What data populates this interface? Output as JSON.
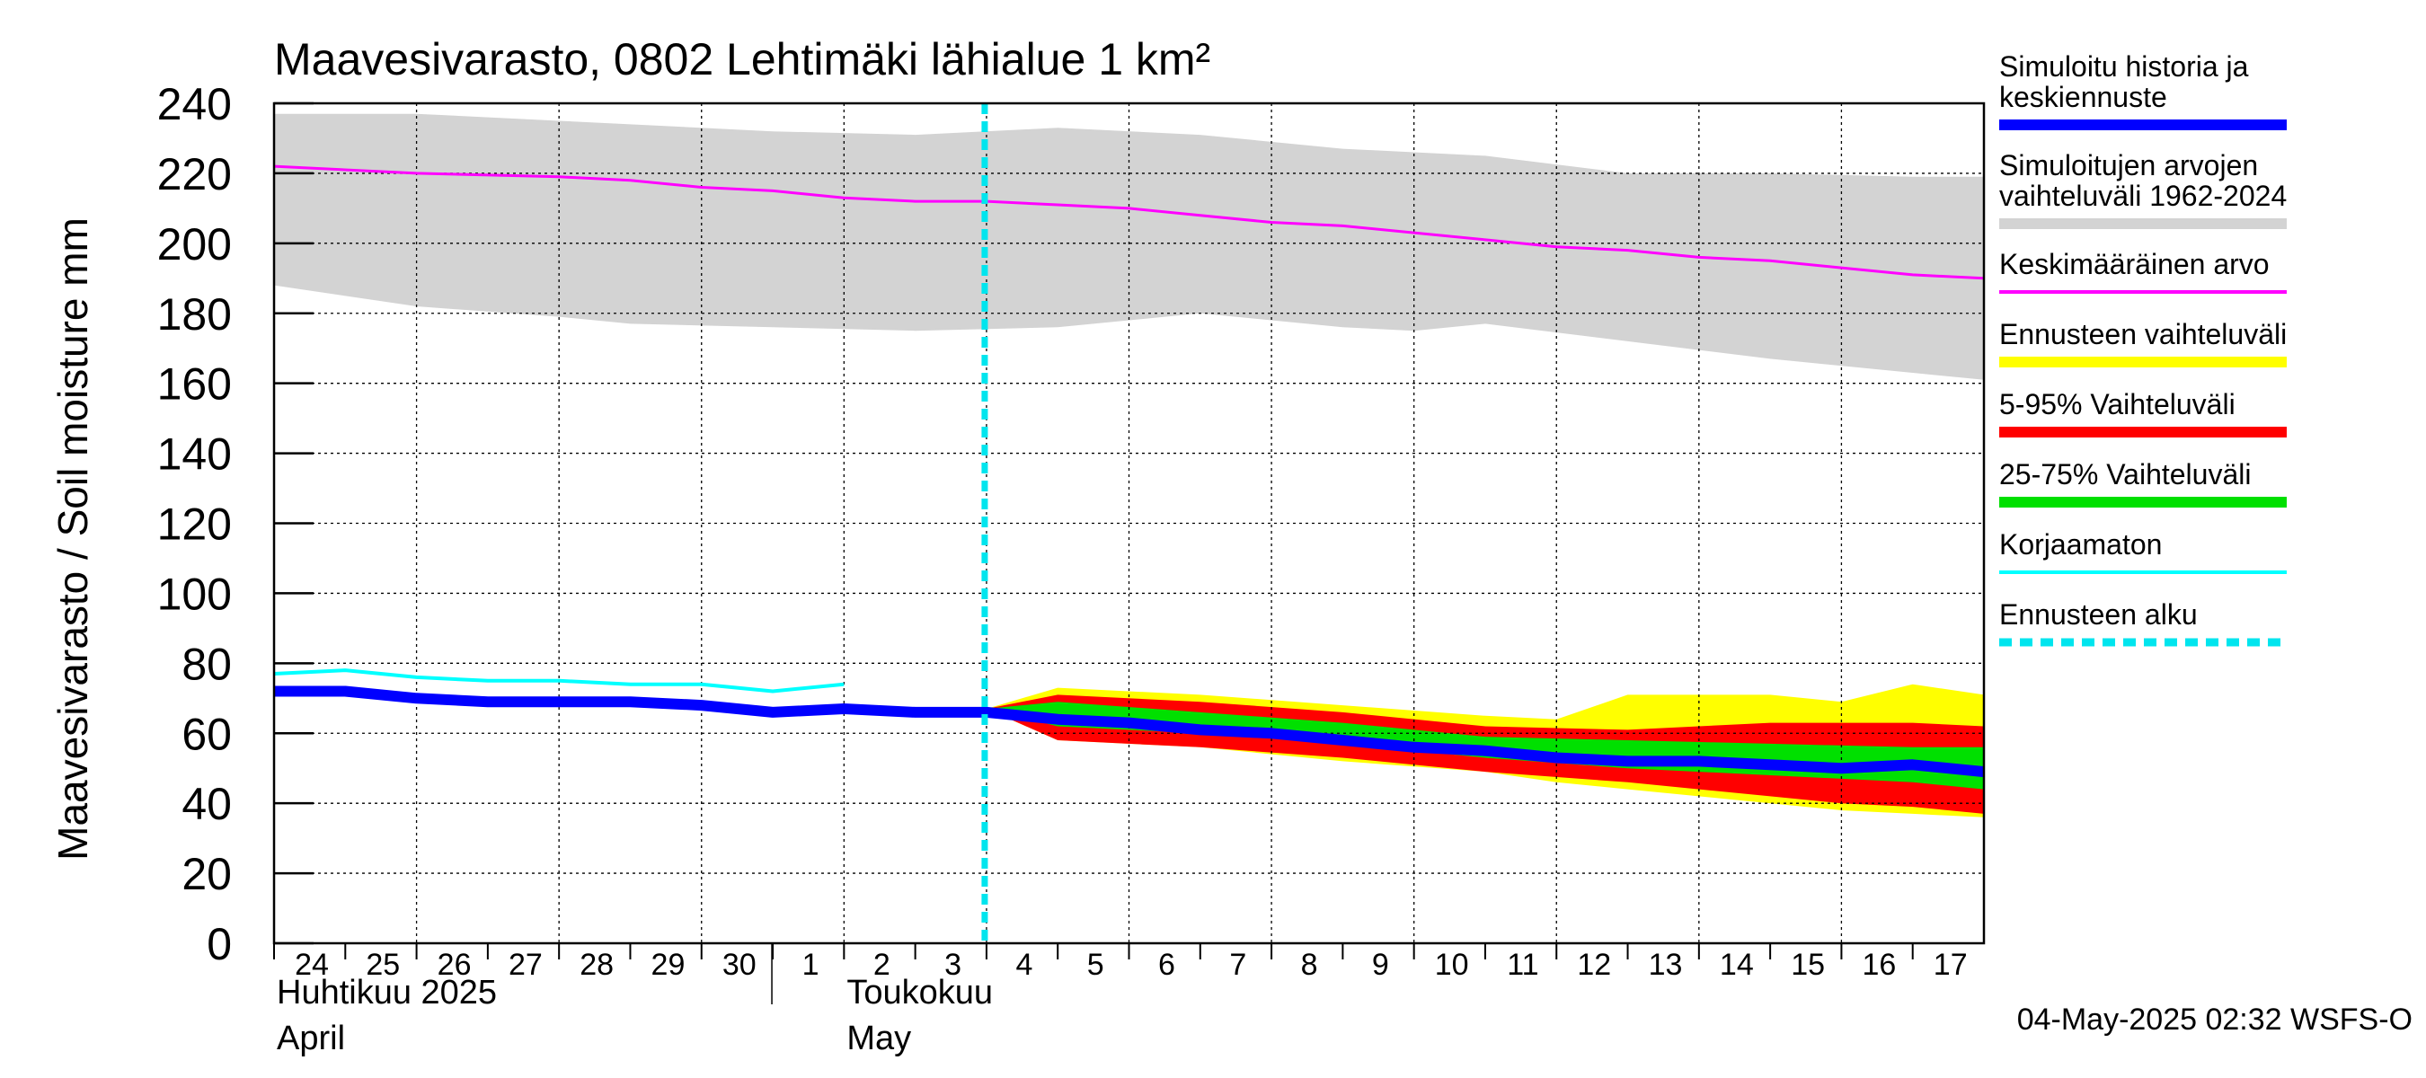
{
  "chart_data": {
    "type": "area",
    "title": "Maavesivarasto, 0802 Lehtimäki lähialue 1 km²",
    "ylabel": "Maavesivarasto / Soil moisture   mm",
    "ylim": [
      0,
      240
    ],
    "yticks": [
      0,
      20,
      40,
      60,
      80,
      100,
      120,
      140,
      160,
      180,
      200,
      220,
      240
    ],
    "x_start": "2025-04-24",
    "x_end": "2025-05-18",
    "day_ticks": [
      {
        "date": "2025-04-24",
        "label": "24"
      },
      {
        "date": "2025-04-25",
        "label": "25"
      },
      {
        "date": "2025-04-26",
        "label": "26"
      },
      {
        "date": "2025-04-27",
        "label": "27"
      },
      {
        "date": "2025-04-28",
        "label": "28"
      },
      {
        "date": "2025-04-29",
        "label": "29"
      },
      {
        "date": "2025-04-30",
        "label": "30"
      },
      {
        "date": "2025-05-01",
        "label": "1"
      },
      {
        "date": "2025-05-02",
        "label": "2"
      },
      {
        "date": "2025-05-03",
        "label": "3"
      },
      {
        "date": "2025-05-04",
        "label": "4"
      },
      {
        "date": "2025-05-05",
        "label": "5"
      },
      {
        "date": "2025-05-06",
        "label": "6"
      },
      {
        "date": "2025-05-07",
        "label": "7"
      },
      {
        "date": "2025-05-08",
        "label": "8"
      },
      {
        "date": "2025-05-09",
        "label": "9"
      },
      {
        "date": "2025-05-10",
        "label": "10"
      },
      {
        "date": "2025-05-11",
        "label": "11"
      },
      {
        "date": "2025-05-12",
        "label": "12"
      },
      {
        "date": "2025-05-13",
        "label": "13"
      },
      {
        "date": "2025-05-14",
        "label": "14"
      },
      {
        "date": "2025-05-15",
        "label": "15"
      },
      {
        "date": "2025-05-16",
        "label": "16"
      },
      {
        "date": "2025-05-17",
        "label": "17"
      }
    ],
    "month_labels": [
      {
        "date": "2025-04-24",
        "line1": "Huhtikuu  2025",
        "line2": "April"
      },
      {
        "date": "2025-05-02",
        "line1": "Toukokuu",
        "line2": "May"
      }
    ],
    "month_boundary": "2025-05-01",
    "forecast_start": "2025-05-04",
    "timestamp": "04-May-2025 02:32 WSFS-O",
    "legend_position": "right",
    "legend": [
      {
        "label": "Simuloitu historia ja\nkeskiennuste",
        "color": "#0000ff",
        "style": "thick"
      },
      {
        "label": "Simuloitujen arvojen\nvaihteluväli 1962-2024",
        "color": "#d3d3d3",
        "style": "thick"
      },
      {
        "label": "Keskimääräinen arvo",
        "color": "#ff00ff",
        "style": "thin"
      },
      {
        "label": "Ennusteen vaihteluväli",
        "color": "#ffff00",
        "style": "thick"
      },
      {
        "label": "5-95% Vaihteluväli",
        "color": "#ff0000",
        "style": "thick"
      },
      {
        "label": "25-75% Vaihteluväli",
        "color": "#00e000",
        "style": "thick"
      },
      {
        "label": "Korjaamaton",
        "color": "#00ffff",
        "style": "thin"
      },
      {
        "label": "Ennusteen alku",
        "color": "#00e5ee",
        "style": "dashed"
      }
    ],
    "series": [
      {
        "name": "Simuloitujen arvojen vaihteluväli 1962-2024",
        "kind": "band",
        "color": "#d3d3d3",
        "x": [
          "2025-04-24",
          "2025-04-26",
          "2025-04-28",
          "2025-04-29",
          "2025-05-01",
          "2025-05-03",
          "2025-05-05",
          "2025-05-07",
          "2025-05-09",
          "2025-05-10",
          "2025-05-11",
          "2025-05-13",
          "2025-05-15",
          "2025-05-17",
          "2025-05-18"
        ],
        "upper": [
          237,
          237,
          235,
          234,
          232,
          231,
          233,
          231,
          227,
          226,
          225,
          220,
          220,
          219,
          219
        ],
        "lower": [
          188,
          182,
          179,
          177,
          176,
          175,
          176,
          180,
          176,
          175,
          177,
          172,
          167,
          163,
          161
        ]
      },
      {
        "name": "Ennusteen vaihteluväli",
        "kind": "band",
        "color": "#ffff00",
        "x": [
          "2025-05-04",
          "2025-05-05",
          "2025-05-07",
          "2025-05-09",
          "2025-05-11",
          "2025-05-12",
          "2025-05-13",
          "2025-05-15",
          "2025-05-16",
          "2025-05-17",
          "2025-05-18"
        ],
        "upper": [
          67,
          73,
          71,
          68,
          65,
          64,
          71,
          71,
          69,
          74,
          71
        ],
        "lower": [
          67,
          58,
          56,
          52,
          49,
          46,
          44,
          40,
          38,
          37,
          36
        ]
      },
      {
        "name": "5-95% Vaihteluväli",
        "kind": "band",
        "color": "#ff0000",
        "x": [
          "2025-05-04",
          "2025-05-05",
          "2025-05-07",
          "2025-05-09",
          "2025-05-11",
          "2025-05-13",
          "2025-05-15",
          "2025-05-16",
          "2025-05-17",
          "2025-05-18"
        ],
        "upper": [
          67,
          71,
          69,
          66,
          62,
          61,
          63,
          63,
          63,
          62
        ],
        "lower": [
          67,
          58,
          56,
          53,
          49,
          46,
          42,
          40,
          39,
          37
        ]
      },
      {
        "name": "25-75% Vaihteluväli",
        "kind": "band",
        "color": "#00e000",
        "x": [
          "2025-05-04",
          "2025-05-05",
          "2025-05-07",
          "2025-05-09",
          "2025-05-11",
          "2025-05-13",
          "2025-05-15",
          "2025-05-17",
          "2025-05-18"
        ],
        "upper": [
          67,
          69,
          66,
          63,
          59,
          58,
          57,
          56,
          56
        ],
        "lower": [
          67,
          62,
          60,
          57,
          53,
          50,
          48,
          46,
          44
        ]
      },
      {
        "name": "Keskimääräinen arvo",
        "kind": "line",
        "color": "#ff00ff",
        "width": 3,
        "x": [
          "2025-04-24",
          "2025-04-26",
          "2025-04-28",
          "2025-04-29",
          "2025-04-30",
          "2025-05-01",
          "2025-05-02",
          "2025-05-03",
          "2025-05-04",
          "2025-05-05",
          "2025-05-06",
          "2025-05-07",
          "2025-05-08",
          "2025-05-09",
          "2025-05-10",
          "2025-05-11",
          "2025-05-12",
          "2025-05-13",
          "2025-05-14",
          "2025-05-15",
          "2025-05-16",
          "2025-05-17",
          "2025-05-18"
        ],
        "y": [
          222,
          220,
          219,
          218,
          216,
          215,
          213,
          212,
          212,
          211,
          210,
          208,
          206,
          205,
          203,
          201,
          199,
          198,
          196,
          195,
          193,
          191,
          190
        ]
      },
      {
        "name": "Korjaamaton",
        "kind": "line",
        "color": "#00ffff",
        "width": 4,
        "x": [
          "2025-04-24",
          "2025-04-25",
          "2025-04-26",
          "2025-04-27",
          "2025-04-28",
          "2025-04-29",
          "2025-04-30",
          "2025-05-01",
          "2025-05-02"
        ],
        "y": [
          77,
          78,
          76,
          75,
          75,
          74,
          74,
          72,
          74
        ]
      },
      {
        "name": "Simuloitu historia ja keskiennuste",
        "kind": "line",
        "color": "#0000ff",
        "width": 12,
        "x": [
          "2025-04-24",
          "2025-04-25",
          "2025-04-26",
          "2025-04-27",
          "2025-04-28",
          "2025-04-29",
          "2025-04-30",
          "2025-05-01",
          "2025-05-02",
          "2025-05-03",
          "2025-05-04",
          "2025-05-05",
          "2025-05-06",
          "2025-05-07",
          "2025-05-08",
          "2025-05-09",
          "2025-05-10",
          "2025-05-11",
          "2025-05-12",
          "2025-05-13",
          "2025-05-14",
          "2025-05-15",
          "2025-05-16",
          "2025-05-17",
          "2025-05-18"
        ],
        "y": [
          72,
          72,
          70,
          69,
          69,
          69,
          68,
          66,
          67,
          66,
          66,
          64,
          63,
          61,
          60,
          58,
          56,
          55,
          53,
          52,
          52,
          51,
          50,
          51,
          49
        ]
      }
    ]
  }
}
